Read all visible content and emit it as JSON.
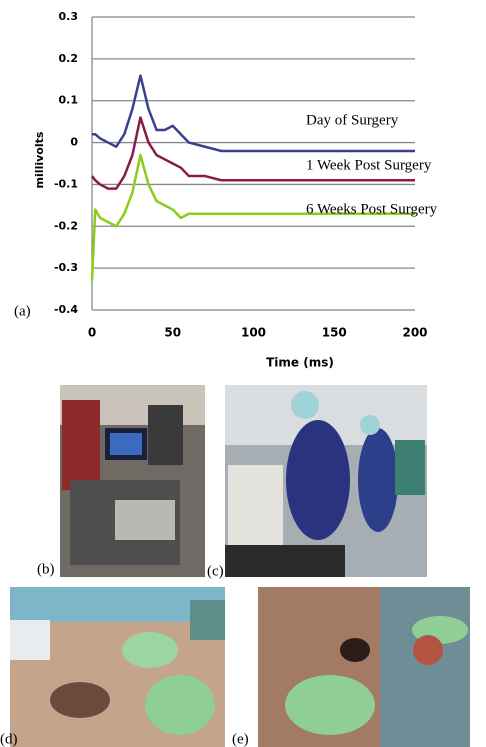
{
  "chart_data": {
    "type": "line",
    "xlabel": "Time (ms)",
    "ylabel": "millivolts",
    "panel_label": "(a)",
    "x": [
      0,
      2,
      5,
      10,
      15,
      20,
      25,
      30,
      35,
      40,
      45,
      50,
      55,
      60,
      70,
      80,
      100,
      120,
      140,
      160,
      180,
      200
    ],
    "series": [
      {
        "name": "Day of Surgery",
        "color": "#3b3f8f",
        "values": [
          0.02,
          0.02,
          0.01,
          0,
          -0.01,
          0.02,
          0.08,
          0.16,
          0.08,
          0.03,
          0.03,
          0.04,
          0.02,
          0,
          -0.01,
          -0.02,
          -0.02,
          -0.02,
          -0.02,
          -0.02,
          -0.02,
          -0.02
        ]
      },
      {
        "name": "1 Week Post Surgery",
        "color": "#8b1a4a",
        "values": [
          -0.08,
          -0.09,
          -0.1,
          -0.11,
          -0.11,
          -0.08,
          -0.03,
          0.06,
          0,
          -0.03,
          -0.04,
          -0.05,
          -0.06,
          -0.08,
          -0.08,
          -0.09,
          -0.09,
          -0.09,
          -0.09,
          -0.09,
          -0.09,
          -0.09
        ]
      },
      {
        "name": "6 Weeks Post Surgery",
        "color": "#8ccc1a",
        "values": [
          -0.33,
          -0.16,
          -0.18,
          -0.19,
          -0.2,
          -0.17,
          -0.12,
          -0.03,
          -0.1,
          -0.14,
          -0.15,
          -0.16,
          -0.18,
          -0.17,
          -0.17,
          -0.17,
          -0.17,
          -0.17,
          -0.17,
          -0.17,
          -0.17,
          -0.17
        ]
      }
    ],
    "xlim": [
      0,
      200
    ],
    "xticks": [
      0,
      50,
      100,
      150,
      200
    ],
    "ylim": [
      -0.4,
      0.3
    ],
    "yticks": [
      0.3,
      0.2,
      0.1,
      0,
      -0.1,
      -0.2,
      -0.3,
      -0.4
    ],
    "grid": true
  },
  "panels": [
    {
      "label": "(b)"
    },
    {
      "label": "(c)"
    },
    {
      "label": "(d)"
    },
    {
      "label": "(e)"
    }
  ]
}
